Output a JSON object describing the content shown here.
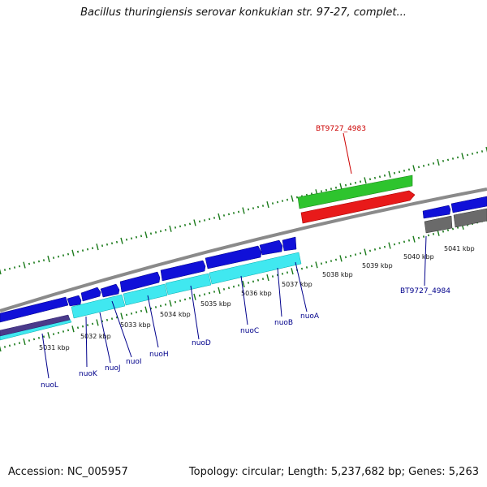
{
  "header": {
    "title": "Bacillus thuringiensis serovar konkukian str. 97-27, complet..."
  },
  "footer": {
    "accession": "Accession: NC_005957",
    "summary": "Topology: circular; Length: 5,237,682 bp; Genes: 5,263"
  },
  "colors": {
    "outer_ticks": "#1a7a1a",
    "backbone": "#8a8a8a",
    "forward_cds": "#1010d8",
    "reverse_cds": "#40e8f0",
    "highlight_gene": "#2ec42e",
    "highlight_feature": "#e81a1a",
    "pseudo_gene": "#6a6a6a",
    "gene_label": "#00008b",
    "highlight_label": "#cc0000"
  },
  "kbp_labels": [
    {
      "id": "5031",
      "text": "5031 kbp"
    },
    {
      "id": "5032",
      "text": "5032 kbp"
    },
    {
      "id": "5033",
      "text": "5033 kbp"
    },
    {
      "id": "5034",
      "text": "5034 kbp"
    },
    {
      "id": "5035",
      "text": "5035 kbp"
    },
    {
      "id": "5036",
      "text": "5036 kbp"
    },
    {
      "id": "5037",
      "text": "5037 kbp"
    },
    {
      "id": "5038",
      "text": "5038 kbp"
    },
    {
      "id": "5039",
      "text": "5039 kbp"
    },
    {
      "id": "5040",
      "text": "5040 kbp"
    },
    {
      "id": "5041",
      "text": "5041 kbp"
    }
  ],
  "gene_labels": [
    {
      "id": "nuoL",
      "text": "nuoL"
    },
    {
      "id": "nuoK",
      "text": "nuoK"
    },
    {
      "id": "nuoJ",
      "text": "nuoJ"
    },
    {
      "id": "nuoI",
      "text": "nuoI"
    },
    {
      "id": "nuoH",
      "text": "nuoH"
    },
    {
      "id": "nuoD",
      "text": "nuoD"
    },
    {
      "id": "nuoC",
      "text": "nuoC"
    },
    {
      "id": "nuoB",
      "text": "nuoB"
    },
    {
      "id": "nuoA",
      "text": "nuoA"
    },
    {
      "id": "bt4983",
      "text": "BT9727_4983"
    },
    {
      "id": "bt4984",
      "text": "BT9727_4984"
    }
  ]
}
